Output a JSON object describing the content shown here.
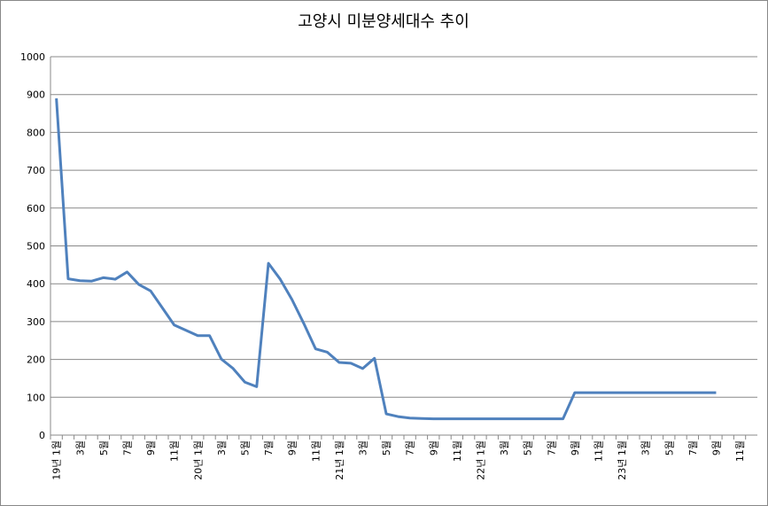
{
  "chart_data": {
    "type": "line",
    "title": "고양시 미분양세대수 추이",
    "categories": [
      "19년 1월",
      null,
      "3월",
      null,
      "5월",
      null,
      "7월",
      null,
      "9월",
      null,
      "11월",
      null,
      "20년 1월",
      null,
      "3월",
      null,
      "5월",
      null,
      "7월",
      null,
      "9월",
      null,
      "11월",
      null,
      "21년 1월",
      null,
      "3월",
      null,
      "5월",
      null,
      "7월",
      null,
      "9월",
      null,
      "11월",
      null,
      "22년 1월",
      null,
      "3월",
      null,
      "5월",
      null,
      "7월",
      null,
      "9월",
      null,
      "11월",
      null,
      "23년 1월",
      null,
      "3월",
      null,
      "5월",
      null,
      "7월",
      null,
      "9월",
      null,
      "11월",
      null
    ],
    "series": [
      {
        "color": "#4f81bd",
        "values": [
          890,
          413,
          408,
          407,
          416,
          412,
          431,
          398,
          381,
          336,
          291,
          277,
          263,
          263,
          201,
          176,
          140,
          128,
          454,
          412,
          358,
          295,
          228,
          219,
          192,
          190,
          176,
          203,
          56,
          49,
          45,
          44,
          43,
          43,
          43,
          43,
          43,
          43,
          43,
          43,
          43,
          43,
          43,
          43,
          112,
          112,
          112,
          112,
          112,
          112,
          112,
          112,
          112,
          112,
          112,
          112,
          112,
          null,
          null,
          null
        ]
      }
    ],
    "ylim": [
      0,
      1000
    ],
    "yticks": [
      0,
      100,
      200,
      300,
      400,
      500,
      600,
      700,
      800,
      900,
      1000
    ],
    "grid": true
  }
}
